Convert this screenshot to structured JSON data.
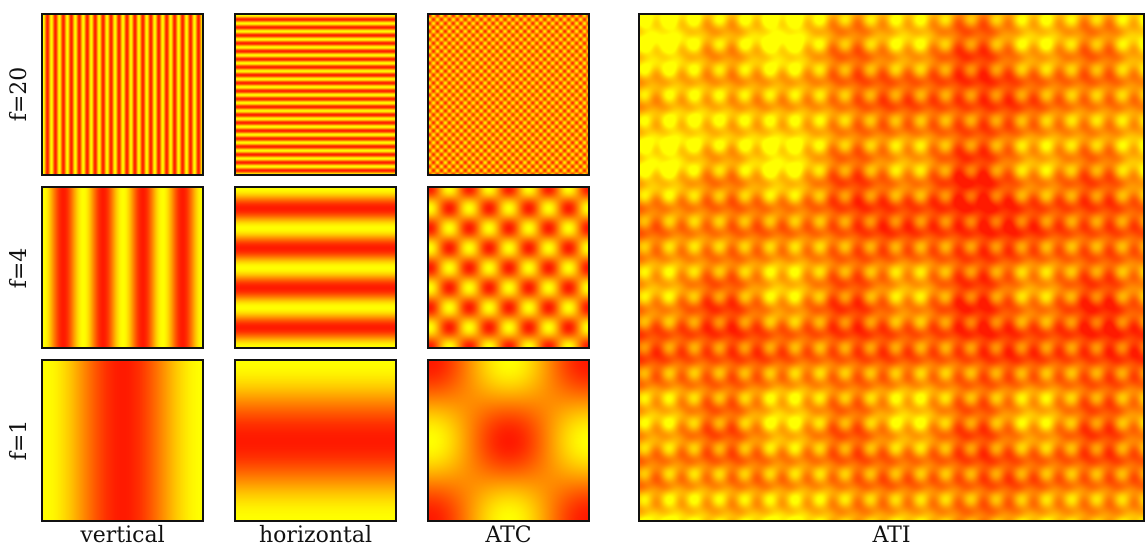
{
  "figure": {
    "rows": [
      {
        "label": "f=20",
        "frequency": 20
      },
      {
        "label": "f=4",
        "frequency": 4
      },
      {
        "label": "f=1",
        "frequency": 1
      }
    ],
    "columns": [
      {
        "label": "vertical",
        "pattern": "vertical"
      },
      {
        "label": "horizontal",
        "pattern": "horizontal"
      },
      {
        "label": "ATC",
        "pattern": "checker"
      }
    ],
    "large_panel": {
      "label": "ATI",
      "pattern": "sum"
    },
    "colors": {
      "low": "#ff1a00",
      "high": "#ffff00",
      "border": "#111111"
    }
  }
}
